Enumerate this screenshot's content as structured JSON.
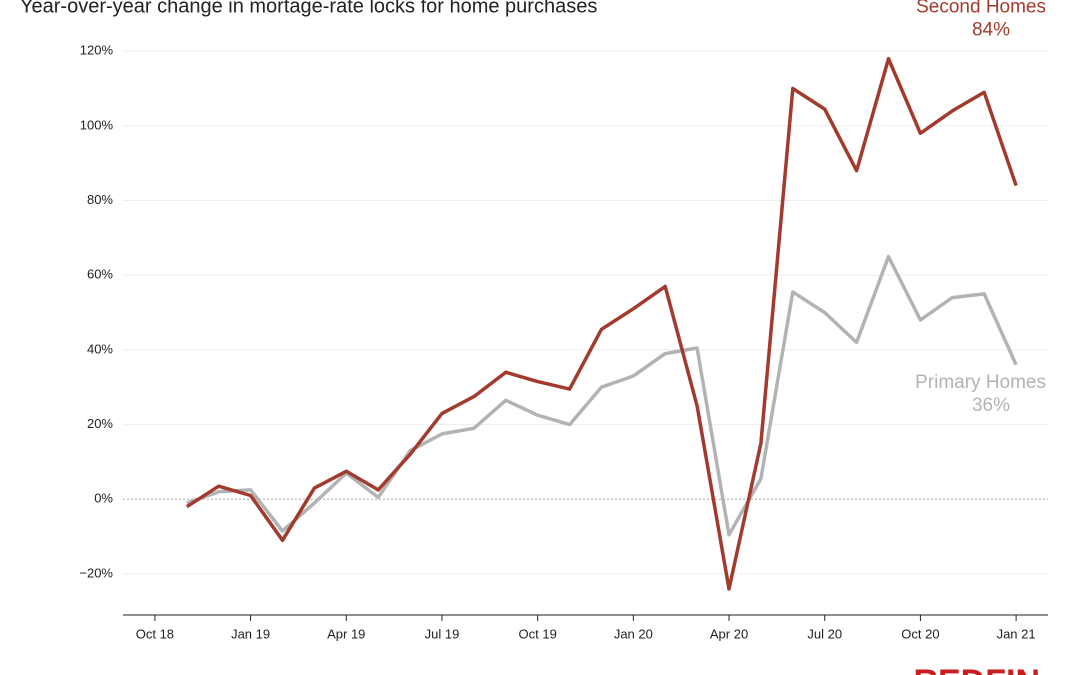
{
  "chart_data": {
    "type": "line",
    "title": "Year-over-year change in mortage-rate locks for home purchases",
    "logo": "REDFIN",
    "x": [
      "2018-11",
      "2018-12",
      "2019-01",
      "2019-02",
      "2019-03",
      "2019-04",
      "2019-05",
      "2019-06",
      "2019-07",
      "2019-08",
      "2019-09",
      "2019-10",
      "2019-11",
      "2019-12",
      "2020-01",
      "2020-02",
      "2020-03",
      "2020-04",
      "2020-05",
      "2020-06",
      "2020-07",
      "2020-08",
      "2020-09",
      "2020-10",
      "2020-11",
      "2020-12",
      "2021-01"
    ],
    "xlim": [
      "2018-09",
      "2021-02"
    ],
    "xticks": [
      {
        "value": "2018-10",
        "label": "Oct 18"
      },
      {
        "value": "2019-01",
        "label": "Jan 19"
      },
      {
        "value": "2019-04",
        "label": "Apr 19"
      },
      {
        "value": "2019-07",
        "label": "Jul 19"
      },
      {
        "value": "2019-10",
        "label": "Oct 19"
      },
      {
        "value": "2020-01",
        "label": "Jan 20"
      },
      {
        "value": "2020-04",
        "label": "Apr 20"
      },
      {
        "value": "2020-07",
        "label": "Jul 20"
      },
      {
        "value": "2020-10",
        "label": "Oct 20"
      },
      {
        "value": "2021-01",
        "label": "Jan 21"
      }
    ],
    "ylim": [
      -31,
      123
    ],
    "yticks": [
      {
        "value": -20,
        "label": "−20%"
      },
      {
        "value": 0,
        "label": "0%"
      },
      {
        "value": 20,
        "label": "20%"
      },
      {
        "value": 40,
        "label": "40%"
      },
      {
        "value": 60,
        "label": "60%"
      },
      {
        "value": 80,
        "label": "80%"
      },
      {
        "value": 100,
        "label": "100%"
      },
      {
        "value": 120,
        "label": "120%"
      }
    ],
    "grid": true,
    "series": [
      {
        "name": "Primary Homes",
        "color": "#b3b3b3",
        "end_label": "36%",
        "values": [
          -1,
          2,
          2.5,
          -8.5,
          -1,
          7,
          0.5,
          13,
          17.5,
          19,
          26.5,
          22.5,
          20,
          30,
          33,
          39,
          40.5,
          -9.5,
          5.5,
          55.5,
          50,
          42,
          65,
          48,
          54,
          55,
          36
        ]
      },
      {
        "name": "Second Homes",
        "color": "#a33a2e",
        "end_label": "84%",
        "values": [
          -2,
          3.5,
          1,
          -11,
          3,
          7.5,
          2.5,
          12,
          23,
          27.5,
          34,
          31.5,
          29.5,
          45.5,
          51,
          57,
          25,
          -24,
          15,
          110,
          104.5,
          88,
          118,
          98,
          104,
          109,
          84
        ]
      }
    ]
  }
}
